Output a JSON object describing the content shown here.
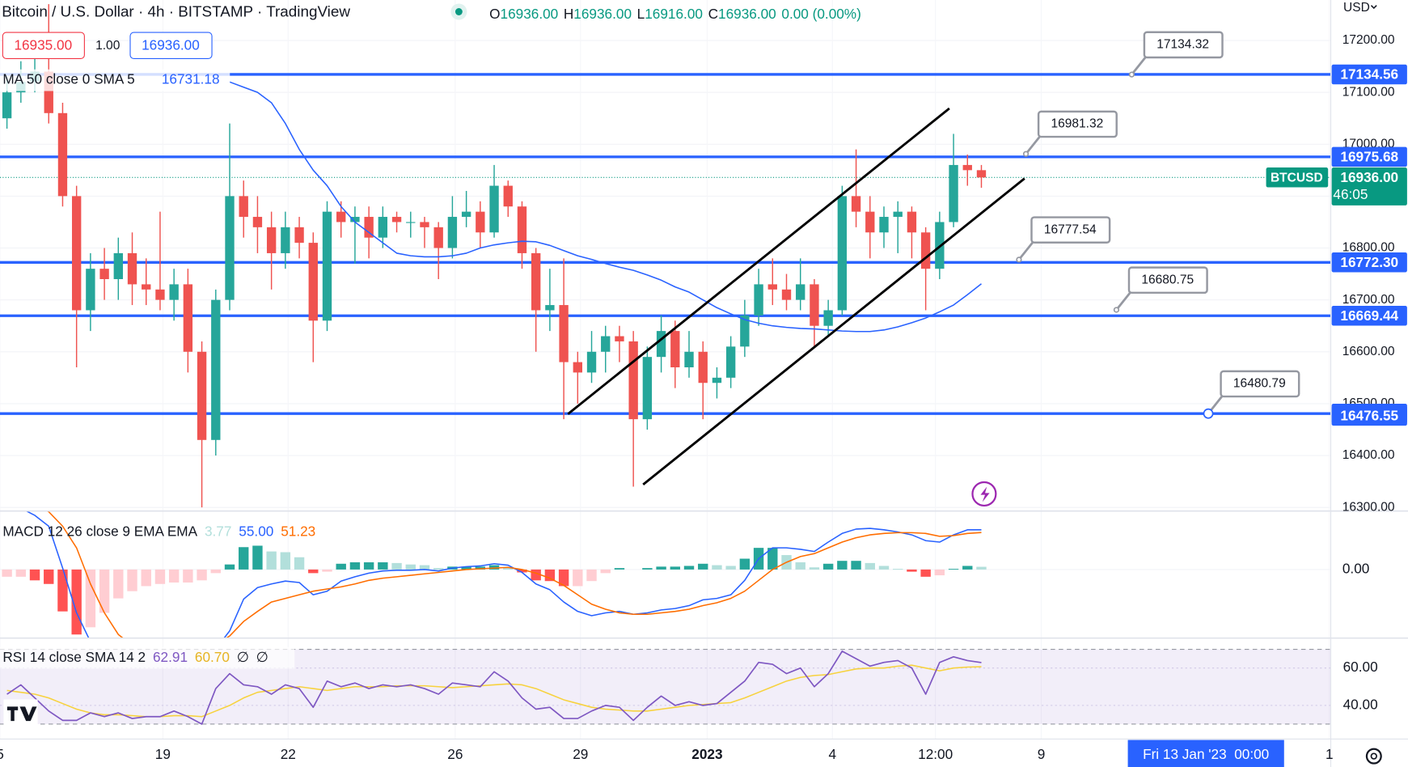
{
  "chart_data": {
    "type": "candlestick",
    "title": "Bitcoin / U.S. Dollar · 4h · BITSTAMP · TradingView",
    "ohlc_legend": [
      {
        "label": "O",
        "value": "16936.00"
      },
      {
        "label": "H",
        "value": "16936.00"
      },
      {
        "label": "L",
        "value": "16916.00"
      },
      {
        "label": "C",
        "value": "16936.00"
      }
    ],
    "change": "0.00 (0.00%)",
    "bid": "16935.00",
    "spread": "1.00",
    "ask": "16936.00",
    "currency": "USD",
    "xlim": [
      -0.5,
      95.1
    ],
    "xticks": [
      {
        "value": -0.5,
        "label": "5"
      },
      {
        "value": 11.2,
        "label": "19"
      },
      {
        "value": 20.2,
        "label": "22"
      },
      {
        "value": 32.2,
        "label": "26"
      },
      {
        "value": 41.2,
        "label": "29"
      },
      {
        "value": 50.3,
        "label": "2023"
      },
      {
        "value": 59.3,
        "label": "4"
      },
      {
        "value": 66.7,
        "label": "12:00"
      },
      {
        "value": 74.3,
        "label": "9"
      },
      {
        "value": 95.0,
        "label": "1"
      }
    ],
    "ylim": [
      16293,
      17278
    ],
    "yticks": [
      {
        "value": 17200,
        "label": "17200.00"
      },
      {
        "value": 17100,
        "label": "17100.00"
      },
      {
        "value": 17000,
        "label": "17000.00"
      },
      {
        "value": 16900,
        "label": "16900.00"
      },
      {
        "value": 16800,
        "label": "16800.00"
      },
      {
        "value": 16700,
        "label": "16700.00"
      },
      {
        "value": 16600,
        "label": "16600.00"
      },
      {
        "value": 16500,
        "label": "16500.00"
      },
      {
        "value": 16400,
        "label": "16400.00"
      },
      {
        "value": 16300,
        "label": "16300.00"
      }
    ],
    "up_color": "#26a69a",
    "down_color": "#ef5350",
    "candles": [
      [
        17050,
        17130,
        17030,
        17100
      ],
      [
        17100,
        17160,
        17080,
        17120
      ],
      [
        17120,
        17180,
        17100,
        17140
      ],
      [
        17140,
        17270,
        17040,
        17060
      ],
      [
        17060,
        17080,
        16880,
        16900
      ],
      [
        16900,
        16920,
        16570,
        16680
      ],
      [
        16680,
        16790,
        16640,
        16760
      ],
      [
        16760,
        16800,
        16700,
        16740
      ],
      [
        16740,
        16820,
        16700,
        16790
      ],
      [
        16790,
        16830,
        16690,
        16730
      ],
      [
        16730,
        16780,
        16690,
        16720
      ],
      [
        16720,
        16870,
        16680,
        16700
      ],
      [
        16700,
        16760,
        16660,
        16730
      ],
      [
        16730,
        16760,
        16560,
        16600
      ],
      [
        16600,
        16620,
        16300,
        16430
      ],
      [
        16430,
        16720,
        16400,
        16700
      ],
      [
        16700,
        17040,
        16680,
        16900
      ],
      [
        16900,
        16930,
        16820,
        16860
      ],
      [
        16860,
        16900,
        16790,
        16840
      ],
      [
        16840,
        16870,
        16720,
        16790
      ],
      [
        16790,
        16870,
        16760,
        16840
      ],
      [
        16840,
        16860,
        16780,
        16810
      ],
      [
        16810,
        16830,
        16580,
        16660
      ],
      [
        16660,
        16890,
        16640,
        16870
      ],
      [
        16870,
        16890,
        16820,
        16850
      ],
      [
        16850,
        16880,
        16770,
        16860
      ],
      [
        16860,
        16880,
        16780,
        16820
      ],
      [
        16820,
        16880,
        16800,
        16860
      ],
      [
        16860,
        16870,
        16830,
        16850
      ],
      [
        16850,
        16870,
        16820,
        16850
      ],
      [
        16850,
        16860,
        16800,
        16840
      ],
      [
        16840,
        16850,
        16740,
        16800
      ],
      [
        16800,
        16900,
        16780,
        16860
      ],
      [
        16860,
        16910,
        16840,
        16870
      ],
      [
        16870,
        16890,
        16800,
        16830
      ],
      [
        16830,
        16960,
        16820,
        16920
      ],
      [
        16920,
        16930,
        16860,
        16880
      ],
      [
        16880,
        16890,
        16760,
        16790
      ],
      [
        16790,
        16800,
        16600,
        16680
      ],
      [
        16680,
        16760,
        16640,
        16690
      ],
      [
        16690,
        16780,
        16470,
        16580
      ],
      [
        16580,
        16600,
        16500,
        16560
      ],
      [
        16560,
        16640,
        16540,
        16600
      ],
      [
        16600,
        16650,
        16560,
        16630
      ],
      [
        16630,
        16650,
        16580,
        16620
      ],
      [
        16620,
        16640,
        16340,
        16470
      ],
      [
        16470,
        16610,
        16450,
        16590
      ],
      [
        16590,
        16670,
        16560,
        16640
      ],
      [
        16640,
        16660,
        16530,
        16570
      ],
      [
        16570,
        16640,
        16550,
        16600
      ],
      [
        16600,
        16620,
        16470,
        16540
      ],
      [
        16540,
        16570,
        16510,
        16550
      ],
      [
        16550,
        16630,
        16530,
        16610
      ],
      [
        16610,
        16700,
        16590,
        16670
      ],
      [
        16670,
        16760,
        16650,
        16730
      ],
      [
        16730,
        16780,
        16690,
        16720
      ],
      [
        16720,
        16750,
        16680,
        16700
      ],
      [
        16700,
        16780,
        16680,
        16730
      ],
      [
        16730,
        16740,
        16610,
        16650
      ],
      [
        16650,
        16700,
        16630,
        16680
      ],
      [
        16680,
        16920,
        16670,
        16900
      ],
      [
        16900,
        16990,
        16840,
        16870
      ],
      [
        16870,
        16900,
        16780,
        16830
      ],
      [
        16830,
        16880,
        16800,
        16860
      ],
      [
        16860,
        16890,
        16790,
        16870
      ],
      [
        16870,
        16880,
        16780,
        16830
      ],
      [
        16830,
        16840,
        16680,
        16760
      ],
      [
        16760,
        16870,
        16740,
        16850
      ],
      [
        16850,
        17020,
        16840,
        16960
      ],
      [
        16960,
        16980,
        16920,
        16950
      ],
      [
        16950,
        16960,
        16916,
        16936
      ]
    ],
    "ma": {
      "label": "MA 50 close 0 SMA 5",
      "value_label": "16731.18",
      "color": "#2962ff",
      "values": [
        null,
        null,
        null,
        null,
        null,
        null,
        null,
        null,
        null,
        null,
        null,
        null,
        null,
        null,
        null,
        null,
        17120,
        17110,
        17100,
        17080,
        17040,
        16990,
        16950,
        16920,
        16880,
        16850,
        16830,
        16810,
        16790,
        16785,
        16783,
        16783,
        16785,
        16790,
        16800,
        16806,
        16810,
        16813,
        16812,
        16805,
        16795,
        16785,
        16778,
        16770,
        16763,
        16757,
        16748,
        16738,
        16725,
        16715,
        16700,
        16685,
        16673,
        16662,
        16655,
        16650,
        16647,
        16645,
        16644,
        16642,
        16640,
        16639,
        16639,
        16642,
        16648,
        16656,
        16665,
        16677,
        16690,
        16710,
        16731
      ]
    },
    "level_color": "#2962ff",
    "levels": [
      {
        "value": 17134.56,
        "label": "17134.56"
      },
      {
        "value": 16975.68,
        "label": "16975.68"
      },
      {
        "value": 16772.3,
        "label": "16772.30"
      },
      {
        "value": 16669.44,
        "label": "16669.44"
      },
      {
        "value": 16480.79,
        "label": "16480.79"
      }
    ],
    "extra_badge": {
      "value": 16476.55,
      "label": "16476.55"
    },
    "last_price": {
      "name": "BTCUSD",
      "value": 16936,
      "label": "16936.00",
      "countdown": "46:05",
      "color": "#089981"
    },
    "callouts": [
      {
        "x": 80.8,
        "y": 17134.32
      },
      {
        "x": 73.2,
        "y": 16981.32
      },
      {
        "x": 72.7,
        "y": 16777.54
      },
      {
        "x": 79.7,
        "y": 16680.75
      },
      {
        "x": 86.3,
        "y": 16480.79
      }
    ],
    "channel": [
      {
        "x": [
          40.3,
          67.7
        ],
        "y": [
          16480,
          17069
        ]
      },
      {
        "x": [
          45.7,
          73.1
        ],
        "y": [
          16344,
          16934
        ]
      }
    ],
    "crosshair_label": "Fri 13 Jan '23  00:00",
    "macd": {
      "label": "MACD 12 26 close 9 EMA EMA",
      "legend_values": [
        "3.77",
        "55.00",
        "51.23"
      ],
      "legend_colors": [
        "#b2dfdb",
        "#2962ff",
        "#ff6d00"
      ],
      "ylim": [
        -95,
        81
      ],
      "yticks": [
        {
          "value": 0,
          "label": "0.00"
        }
      ],
      "macd_color": "#2962ff",
      "signal_color": "#ff6d00",
      "histogram_colors": [
        "#26a69a",
        "#b2dfdb",
        "#ffcdd2",
        "#ff5252"
      ],
      "histogram": [
        -10,
        -10,
        -15,
        -20,
        -58,
        -90,
        -80,
        -60,
        -40,
        -30,
        -23,
        -20,
        -18,
        -18,
        -15,
        -5,
        7,
        31,
        33,
        25,
        24,
        17,
        -5,
        -3,
        8,
        10,
        10,
        10,
        9,
        7,
        6,
        2,
        4,
        4,
        4,
        6,
        3,
        -4,
        -15,
        -16,
        -23,
        -23,
        -16,
        -5,
        2,
        0,
        2,
        4,
        4,
        5,
        8,
        6,
        5,
        15,
        30,
        30,
        20,
        10,
        3,
        8,
        12,
        12,
        9,
        5,
        1,
        -3,
        -10,
        -8,
        1,
        5,
        3.77
      ],
      "macd": [
        90,
        85,
        75,
        60,
        2,
        -60,
        -100,
        -120,
        -130,
        -135,
        -138,
        -140,
        -140,
        -138,
        -130,
        -110,
        -85,
        -41,
        -25,
        -20,
        -16,
        -18,
        -35,
        -30,
        -16,
        -10,
        -5,
        -2,
        -1,
        -1,
        0,
        -2,
        2,
        4,
        5,
        8,
        6,
        -4,
        -20,
        -28,
        -45,
        -58,
        -64,
        -60,
        -58,
        -62,
        -60,
        -56,
        -54,
        -50,
        -42,
        -40,
        -35,
        -15,
        15,
        30,
        30,
        28,
        25,
        38,
        50,
        56,
        57,
        55,
        52,
        48,
        40,
        38,
        48,
        55,
        55
      ],
      "signal": [
        100,
        95,
        90,
        80,
        60,
        30,
        -20,
        -60,
        -90,
        -105,
        -115,
        -120,
        -122,
        -120,
        -115,
        -105,
        -92,
        -72,
        -58,
        -45,
        -40,
        -35,
        -30,
        -27,
        -24,
        -20,
        -15,
        -12,
        -10,
        -8,
        -6,
        -4,
        -2,
        0,
        1,
        2,
        3,
        0,
        -5,
        -12,
        -22,
        -35,
        -48,
        -55,
        -60,
        -62,
        -62,
        -60,
        -58,
        -55,
        -50,
        -46,
        -40,
        -30,
        -15,
        0,
        10,
        18,
        22,
        30,
        38,
        44,
        48,
        50,
        51,
        51,
        50,
        46,
        47,
        50,
        51.23
      ]
    },
    "rsi": {
      "label": "RSI 14 close SMA 14 2",
      "legend_values": [
        "62.91",
        "60.70",
        "∅",
        "∅"
      ],
      "legend_colors": [
        "#7e57c2",
        "#e6b422",
        "#131722",
        "#131722"
      ],
      "ylim": [
        22,
        76
      ],
      "yticks": [
        {
          "value": 60,
          "label": "60.00"
        },
        {
          "value": 40,
          "label": "40.00"
        }
      ],
      "band": [
        30,
        70
      ],
      "color": "#7e57c2",
      "sma_color": "#f7d23e",
      "values": [
        46,
        51,
        44,
        37,
        32,
        32,
        36,
        34,
        36,
        33,
        34,
        34,
        37,
        34,
        30,
        49,
        57,
        51,
        50,
        46,
        51,
        49,
        39,
        53,
        50,
        52,
        49,
        51,
        50,
        51,
        49,
        46,
        52,
        51,
        50,
        58,
        53,
        44,
        38,
        39,
        33,
        33,
        37,
        40,
        39,
        32,
        39,
        45,
        40,
        42,
        40,
        41,
        47,
        53,
        63,
        62,
        57,
        60,
        50,
        57,
        69,
        65,
        61,
        63,
        64,
        60,
        46,
        63,
        66,
        64,
        62.91
      ],
      "sma": [
        48,
        47,
        46,
        44,
        41,
        38,
        36,
        35,
        35,
        34.5,
        34,
        34,
        34.5,
        34.5,
        34,
        37,
        40,
        44,
        47,
        48,
        49,
        50,
        49,
        48,
        49,
        50,
        50,
        50,
        50.5,
        50.5,
        50.5,
        50,
        49.5,
        50,
        50.5,
        51,
        51.5,
        51,
        49,
        46,
        43,
        41,
        39,
        38,
        37.5,
        37,
        37,
        38,
        39,
        40,
        40.5,
        41,
        41.5,
        44,
        47,
        50,
        53,
        55,
        56,
        56.5,
        58,
        59.5,
        60,
        60,
        61,
        61.5,
        60,
        58.5,
        60,
        60.5,
        60.7
      ]
    }
  }
}
